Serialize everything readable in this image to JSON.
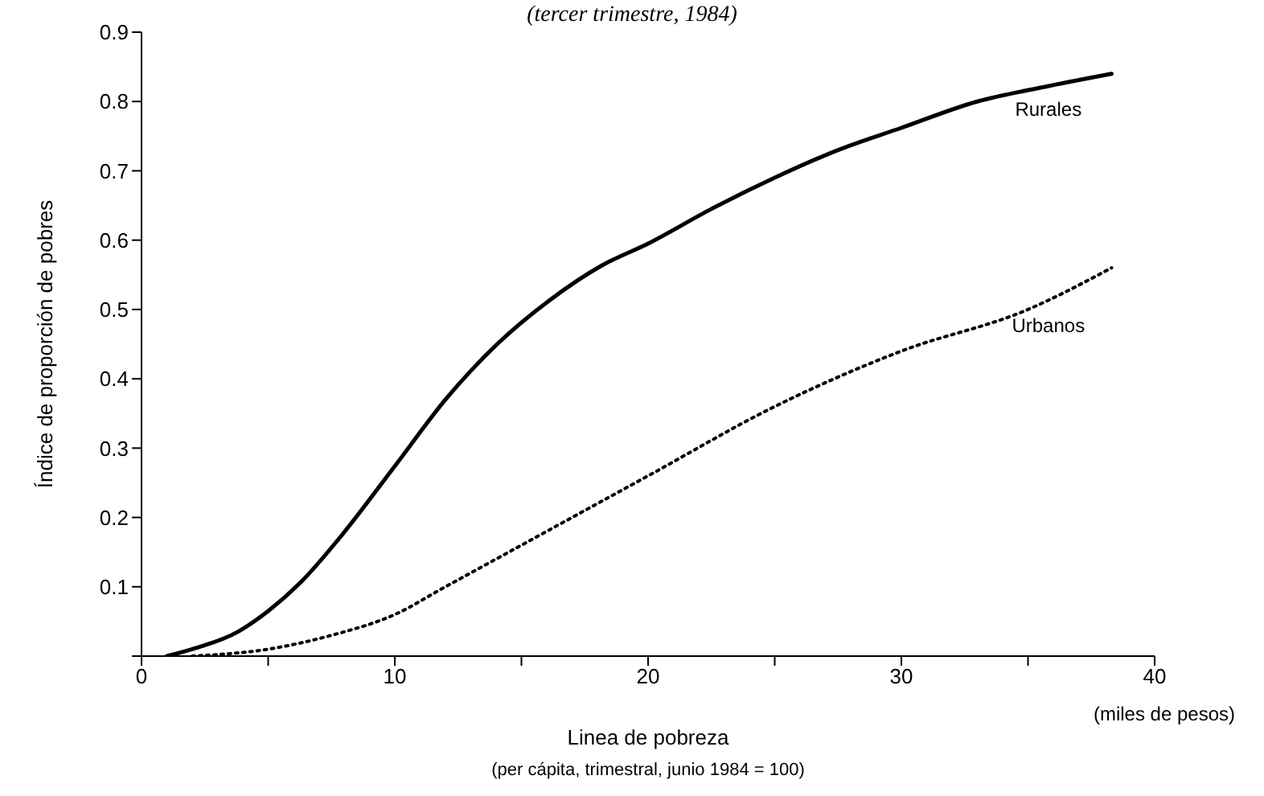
{
  "chart_data": {
    "type": "line",
    "title": "(tercer trimestre, 1984)",
    "xlabel": "Linea de pobreza",
    "ylabel": "Índice de proporción de pobres",
    "annotations": [
      "(per cápita, trimestral, junio 1984 = 100)",
      "(miles de pesos)"
    ],
    "series": [
      {
        "name": "Rurales",
        "color": "#000000",
        "line_style": "solid",
        "x": [
          1,
          2,
          3.8,
          5,
          6.3,
          7.9,
          10,
          12,
          14.1,
          16.1,
          18.2,
          20,
          22.5,
          25,
          27.5,
          30,
          33,
          35.5,
          38.3
        ],
        "values": [
          0,
          0.01,
          0.035,
          0.065,
          0.107,
          0.174,
          0.274,
          0.37,
          0.452,
          0.513,
          0.564,
          0.595,
          0.645,
          0.69,
          0.73,
          0.762,
          0.8,
          0.82,
          0.84
        ]
      },
      {
        "name": "Urbanos",
        "color": "#000000",
        "line_style": "dotted",
        "x": [
          2,
          5,
          7.5,
          10,
          12,
          15,
          18,
          20,
          25,
          30,
          35,
          38.3
        ],
        "values": [
          0,
          0.01,
          0.03,
          0.06,
          0.1,
          0.16,
          0.22,
          0.26,
          0.36,
          0.44,
          0.5,
          0.56
        ]
      }
    ],
    "xlim": [
      0,
      40
    ],
    "xticks": [
      0,
      {
        "value": 5,
        "label": null
      },
      10,
      {
        "value": 15,
        "label": null
      },
      20,
      {
        "value": 25,
        "label": null
      },
      30,
      {
        "value": 35,
        "label": null
      },
      40
    ],
    "ylim": [
      0,
      0.9
    ],
    "yticks": [
      {
        "value": 0,
        "label": null
      },
      0.1,
      0.2,
      0.3,
      0.4,
      0.5,
      0.6,
      0.7,
      0.8,
      0.9
    ],
    "grid": false,
    "legend": false,
    "marker": "none"
  }
}
